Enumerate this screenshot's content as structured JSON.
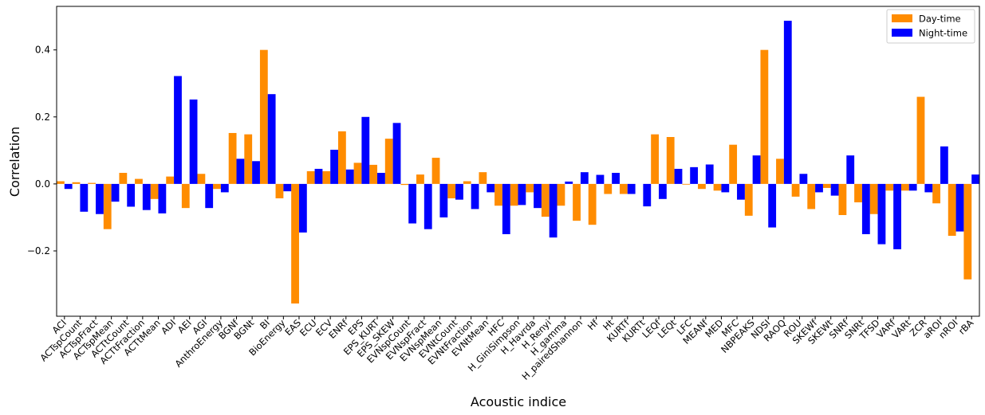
{
  "chart_data": {
    "type": "bar",
    "title": "",
    "xlabel": "Acoustic indice",
    "ylabel": "Correlation",
    "ylim": [
      -0.395,
      0.53
    ],
    "yticks": [
      -0.2,
      0.0,
      0.2,
      0.4
    ],
    "ytick_labels": [
      "−0.2",
      "0.0",
      "0.2",
      "0.4"
    ],
    "grid": false,
    "legend_position": "top-right",
    "categories": [
      "ACI",
      "ACTspCount",
      "ACTspFract",
      "ACTspMean",
      "ACTtCount",
      "ACTtFraction",
      "ACTtMean",
      "ADI",
      "AEI",
      "AGI",
      "AnthroEnergy",
      "BGNf",
      "BGNt",
      "BI",
      "BioEnergy",
      "EAS",
      "ECU",
      "ECV",
      "ENRf",
      "EPS",
      "EPS_KURT",
      "EPS_SKEW",
      "EVNspCount",
      "EVNspFract",
      "EVNspMean",
      "EVNtCount",
      "EVNtFraction",
      "EVNtMean",
      "HFC",
      "H_GiniSimpson",
      "H_Havrda",
      "H_Renyi",
      "H_gamma",
      "H_pairedShannon",
      "Hf",
      "Ht",
      "KURTf",
      "KURTt",
      "LEQf",
      "LEQt",
      "LFC",
      "MEANf",
      "MED",
      "MFC",
      "NBPEAKS",
      "NDSI",
      "RAOQ",
      "ROU",
      "SKEWf",
      "SKEWt",
      "SNRf",
      "SNRt",
      "TFSD",
      "VARf",
      "VARt",
      "ZCR",
      "aROI",
      "nROI",
      "rBA"
    ],
    "series": [
      {
        "name": "Day-time",
        "color": "#ff8c00",
        "values": [
          0.008,
          0.005,
          0.003,
          -0.135,
          0.033,
          0.015,
          -0.045,
          0.022,
          -0.072,
          0.03,
          -0.015,
          0.152,
          0.148,
          0.4,
          -0.043,
          -0.357,
          0.038,
          0.038,
          0.157,
          0.063,
          0.057,
          0.135,
          -0.003,
          0.028,
          0.078,
          -0.043,
          0.008,
          0.035,
          -0.065,
          -0.065,
          -0.025,
          -0.098,
          -0.065,
          -0.11,
          -0.122,
          -0.03,
          -0.03,
          0.0,
          0.148,
          0.14,
          -0.002,
          -0.015,
          -0.02,
          0.117,
          -0.095,
          0.4,
          0.075,
          -0.038,
          -0.075,
          -0.012,
          -0.093,
          -0.055,
          -0.09,
          -0.02,
          -0.02,
          0.26,
          -0.058,
          -0.155,
          -0.285
        ]
      },
      {
        "name": "Night-time",
        "color": "#0000ff",
        "values": [
          -0.015,
          -0.083,
          -0.09,
          -0.053,
          -0.068,
          -0.078,
          -0.088,
          0.322,
          0.252,
          -0.072,
          -0.025,
          0.075,
          0.068,
          0.268,
          -0.022,
          -0.145,
          0.045,
          0.102,
          0.043,
          0.2,
          0.033,
          0.182,
          -0.118,
          -0.135,
          -0.1,
          -0.047,
          -0.075,
          -0.025,
          -0.15,
          -0.063,
          -0.072,
          -0.16,
          0.007,
          0.035,
          0.027,
          0.033,
          -0.03,
          -0.067,
          -0.045,
          0.045,
          0.05,
          0.058,
          -0.025,
          -0.047,
          0.085,
          -0.13,
          0.487,
          0.03,
          -0.025,
          -0.035,
          0.085,
          -0.15,
          -0.18,
          -0.195,
          -0.02,
          -0.025,
          0.112,
          -0.142,
          0.028
        ]
      }
    ]
  }
}
